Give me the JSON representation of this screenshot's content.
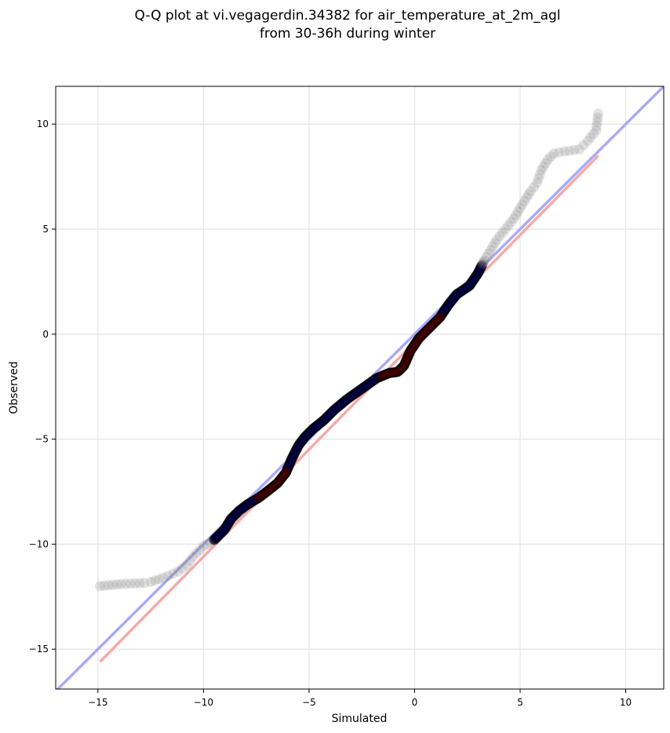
{
  "chart_data": {
    "type": "scatter",
    "title": "Q-Q plot at vi.vegagerdin.34382 for air_temperature_at_2m_agl",
    "subtitle": "from 30-36h during winter",
    "xlabel": "Simulated",
    "ylabel": "Observed",
    "xlim": [
      -17,
      11.8
    ],
    "ylim": [
      -16.9,
      11.8
    ],
    "xticks": [
      -15,
      -10,
      -5,
      0,
      5,
      10
    ],
    "yticks": [
      -15,
      -10,
      -5,
      0,
      5,
      10
    ],
    "xtick_labels": [
      "−15",
      "−10",
      "−5",
      "0",
      "5",
      "10"
    ],
    "ytick_labels": [
      "−15",
      "−10",
      "−5",
      "0",
      "5",
      "10"
    ],
    "grid": true,
    "colors": {
      "identity_line": "#aaaaf5",
      "fit_line": "#f5aaaa",
      "tail_points": "#808080",
      "core_points": "#000000",
      "core_overlay_blue": "#0000aa",
      "core_overlay_red": "#aa0000"
    },
    "reference_lines": [
      {
        "kind": "identity",
        "x": [
          -17,
          11.8
        ],
        "y": [
          -17,
          11.8
        ]
      },
      {
        "kind": "fit",
        "x": [
          -14.9,
          8.7
        ],
        "y": [
          -15.6,
          8.5
        ]
      }
    ],
    "qq_curve": {
      "x": [
        -14.9,
        -13.9,
        -12.8,
        -12.5,
        -11.9,
        -11.2,
        -10.8,
        -10.5,
        -10.0,
        -9.5,
        -9.0,
        -8.7,
        -8.3,
        -7.9,
        -7.4,
        -7.0,
        -6.5,
        -6.1,
        -5.8,
        -5.5,
        -5.2,
        -4.8,
        -4.3,
        -3.8,
        -3.2,
        -2.5,
        -1.8,
        -1.2,
        -0.8,
        -0.5,
        -0.2,
        0.2,
        0.7,
        1.2,
        1.6,
        2.0,
        2.6,
        3.0,
        3.3,
        3.6,
        3.9,
        4.3,
        4.7,
        5.0,
        5.3,
        5.5,
        5.8,
        6.0,
        6.3,
        6.6,
        7.1,
        7.8,
        8.0,
        8.2,
        8.6,
        8.7
      ],
      "y": [
        -12.0,
        -11.9,
        -11.85,
        -11.8,
        -11.6,
        -11.3,
        -11.0,
        -10.6,
        -10.1,
        -9.8,
        -9.3,
        -8.8,
        -8.4,
        -8.1,
        -7.8,
        -7.5,
        -7.1,
        -6.6,
        -5.9,
        -5.3,
        -4.9,
        -4.5,
        -4.1,
        -3.6,
        -3.1,
        -2.6,
        -2.1,
        -1.85,
        -1.8,
        -1.5,
        -0.8,
        -0.2,
        0.3,
        0.8,
        1.4,
        1.9,
        2.3,
        2.9,
        3.5,
        4.0,
        4.5,
        5.0,
        5.5,
        6.0,
        6.5,
        6.8,
        7.2,
        7.8,
        8.3,
        8.6,
        8.7,
        8.8,
        9.0,
        9.2,
        9.7,
        10.5
      ]
    },
    "core_range_x": [
      -9.6,
      3.2
    ]
  }
}
